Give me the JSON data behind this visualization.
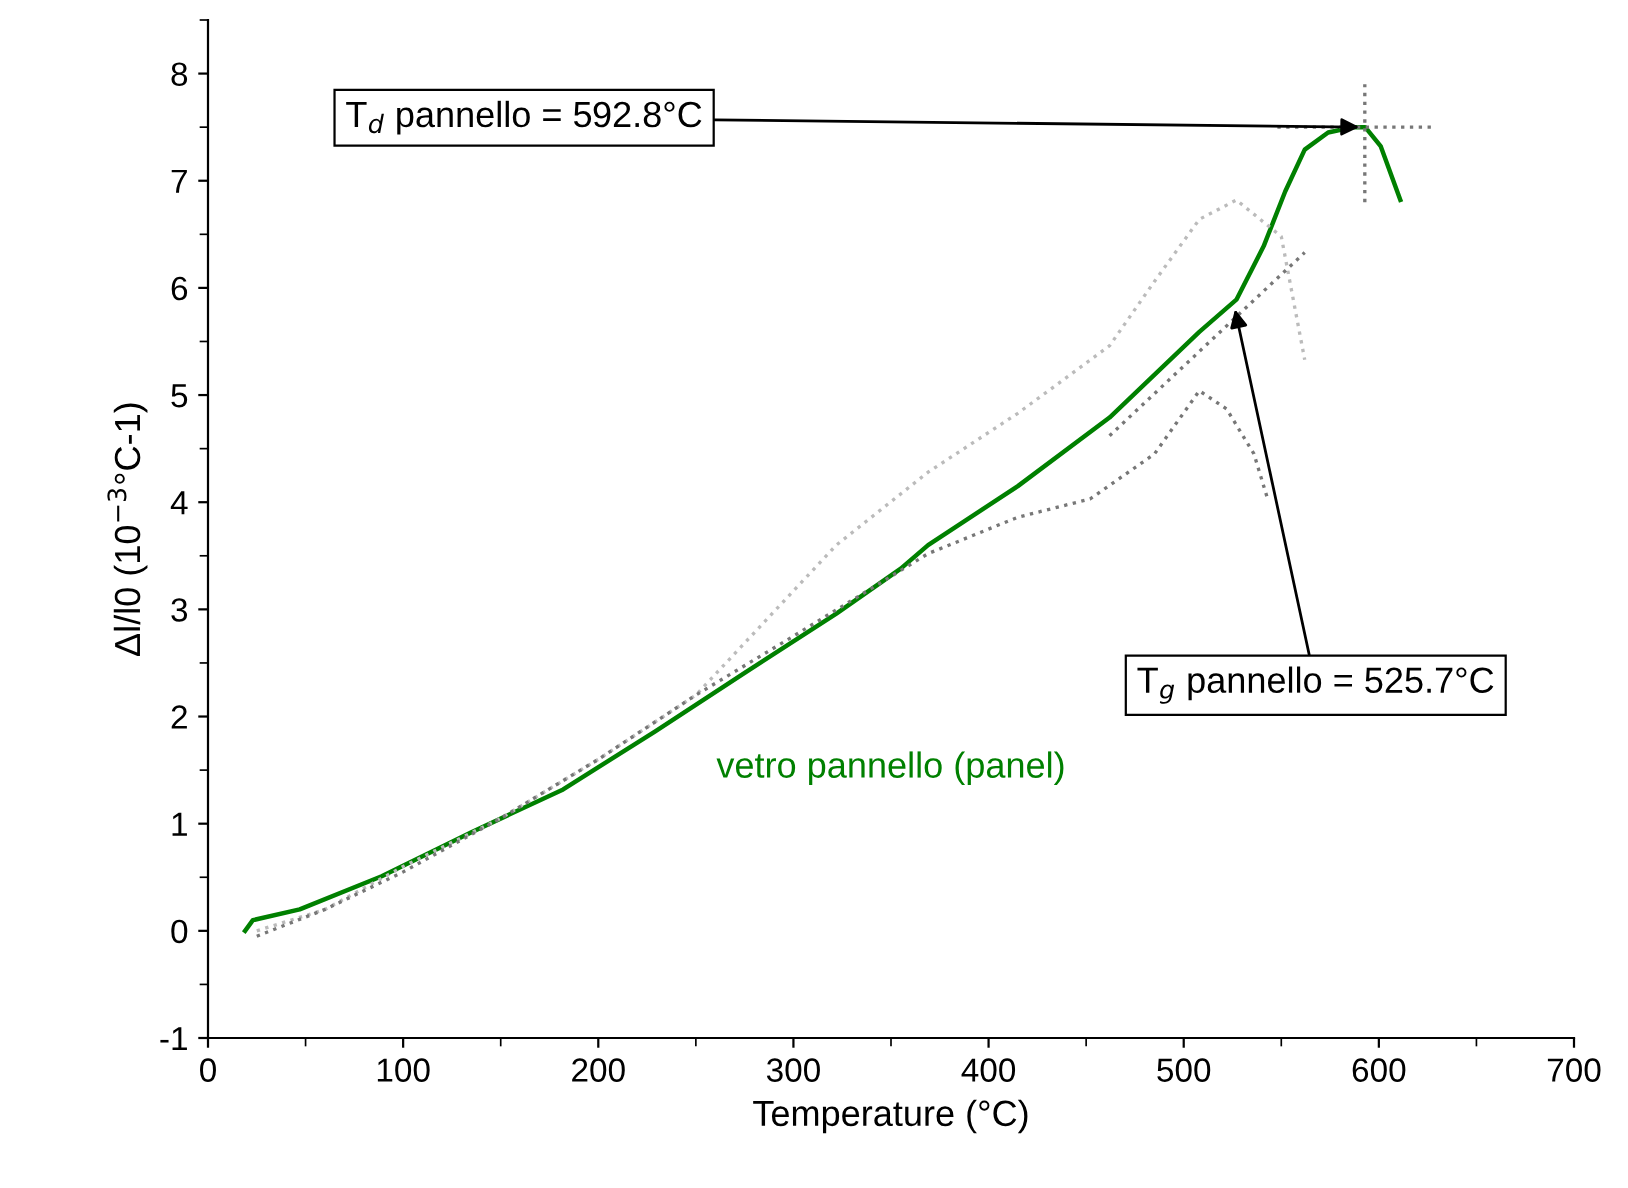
{
  "chart_data": {
    "type": "line",
    "xlabel": "Temperature (°C)",
    "ylabel": "Δl/l0 (10$^{−3}$°C-1)",
    "xlim": [
      0,
      700
    ],
    "ylim": [
      -1,
      8.5
    ],
    "xticks": [
      0,
      100,
      200,
      300,
      400,
      500,
      600,
      700
    ],
    "yticks": [
      -1,
      0,
      1,
      2,
      3,
      4,
      5,
      6,
      7,
      8
    ],
    "grid": false,
    "legend": false,
    "series": [
      {
        "name": "vetro pannello (panel)",
        "color": "#008000",
        "line_style": "solid",
        "x": [
          19,
          23,
          47,
          89,
          135,
          182,
          229,
          276,
          322,
          355,
          369,
          415,
          462,
          508,
          527,
          541,
          552,
          562,
          574,
          587,
          593,
          601,
          611
        ],
        "values": [
          0,
          0.1,
          0.2,
          0.51,
          0.92,
          1.32,
          1.86,
          2.42,
          2.96,
          3.38,
          3.6,
          4.15,
          4.79,
          5.59,
          5.89,
          6.39,
          6.9,
          7.29,
          7.45,
          7.5,
          7.5,
          7.32,
          6.82
        ]
      },
      {
        "color": "#bbbbbb",
        "line_style": "dotted",
        "x": [
          25,
          60,
          100,
          150,
          200,
          250,
          322,
          369,
          415,
          462,
          485,
          508,
          527,
          550,
          562
        ],
        "values": [
          0,
          0.2,
          0.6,
          1.05,
          1.6,
          2.2,
          3.6,
          4.28,
          4.83,
          5.46,
          6.06,
          6.64,
          6.82,
          6.48,
          5.33
        ]
      },
      {
        "color": "#777777",
        "line_style": "dotted",
        "x": [
          25,
          60,
          100,
          150,
          200,
          250,
          300,
          369,
          415,
          452,
          485,
          508,
          522,
          536,
          543
        ],
        "values": [
          -0.05,
          0.2,
          0.55,
          1.05,
          1.6,
          2.2,
          2.75,
          3.52,
          3.86,
          4.03,
          4.45,
          5.04,
          4.87,
          4.45,
          4.03
        ]
      },
      {
        "color": "#777777",
        "line_style": "dotted",
        "x": [
          462,
          562
        ],
        "values": [
          4.62,
          6.33
        ]
      },
      {
        "color": "#777777",
        "line_style": "dotted",
        "x": [
          592.8,
          592.8
        ],
        "values": [
          6.8,
          7.9
        ]
      },
      {
        "color": "#777777",
        "line_style": "dotted",
        "x": [
          548,
          628
        ],
        "values": [
          7.5,
          7.5
        ]
      }
    ],
    "annotations": [
      {
        "text": "T$_{d}$ pannello = 592.8°C",
        "x": 592.8,
        "y": 7.5
      },
      {
        "text": "T$_{g}$ pannello = 525.7°C",
        "x": 525.7,
        "y": 5.85
      }
    ]
  }
}
